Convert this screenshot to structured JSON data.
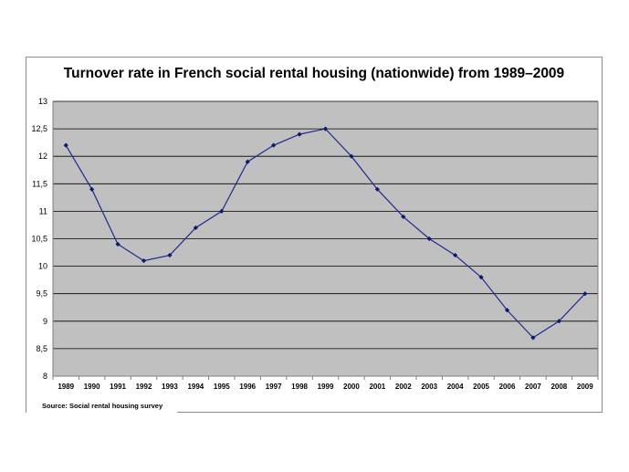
{
  "chart_data": {
    "type": "line",
    "title": "Turnover rate in French social rental housing (nationwide) from 1989–2009",
    "xlabel": "",
    "ylabel": "",
    "categories": [
      "1989",
      "1990",
      "1991",
      "1992",
      "1993",
      "1994",
      "1995",
      "1996",
      "1997",
      "1998",
      "1999",
      "2000",
      "2001",
      "2002",
      "2003",
      "2004",
      "2005",
      "2006",
      "2007",
      "2008",
      "2009"
    ],
    "series": [
      {
        "values": [
          12.2,
          11.4,
          10.4,
          10.1,
          10.2,
          10.7,
          11.0,
          11.9,
          12.2,
          12.4,
          12.5,
          12.0,
          11.4,
          10.9,
          10.5,
          10.2,
          9.8,
          9.2,
          8.7,
          9.0,
          9.5
        ]
      }
    ],
    "ylim": [
      8,
      13
    ],
    "yticks": [
      8,
      8.5,
      9,
      9.5,
      10,
      10.5,
      11,
      11.5,
      12,
      12.5,
      13
    ],
    "ytick_labels": [
      "8",
      "8,5",
      "9",
      "9,5",
      "10",
      "10,5",
      "11",
      "11,5",
      "12",
      "12,5",
      "13"
    ],
    "grid": true,
    "legend": "none",
    "source": "Source: Social rental housing survey",
    "colors": {
      "plot_background": "#c0c0c0",
      "gridline": "#000000",
      "line": "#1f2a8c",
      "marker": "#0d1a6b"
    }
  }
}
